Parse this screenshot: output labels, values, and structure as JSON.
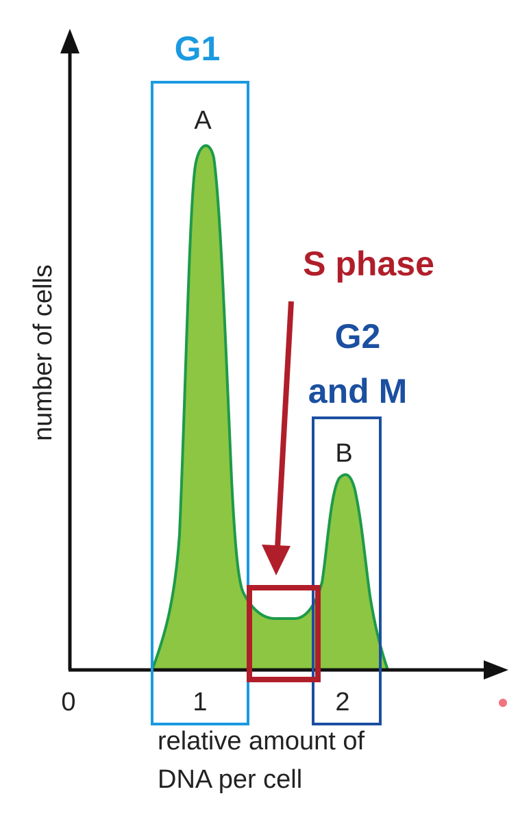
{
  "axes": {
    "ylabel": "number of cells",
    "xlabel_line1": "relative amount of",
    "xlabel_line2": "DNA per cell",
    "origin_label": "0",
    "tick_1": "1",
    "tick_2": "2"
  },
  "phases": {
    "g1": {
      "label": "G1",
      "color": "#1a9ae0"
    },
    "s": {
      "label": "S phase",
      "color": "#b01e2a"
    },
    "g2m": {
      "label_line1": "G2",
      "label_line2": "and M",
      "color": "#1b4fa0"
    }
  },
  "peaks": {
    "a": "A",
    "b": "B"
  },
  "colors": {
    "fill": "#8cc642",
    "outline": "#1e9a4a",
    "axis": "#111111"
  }
}
